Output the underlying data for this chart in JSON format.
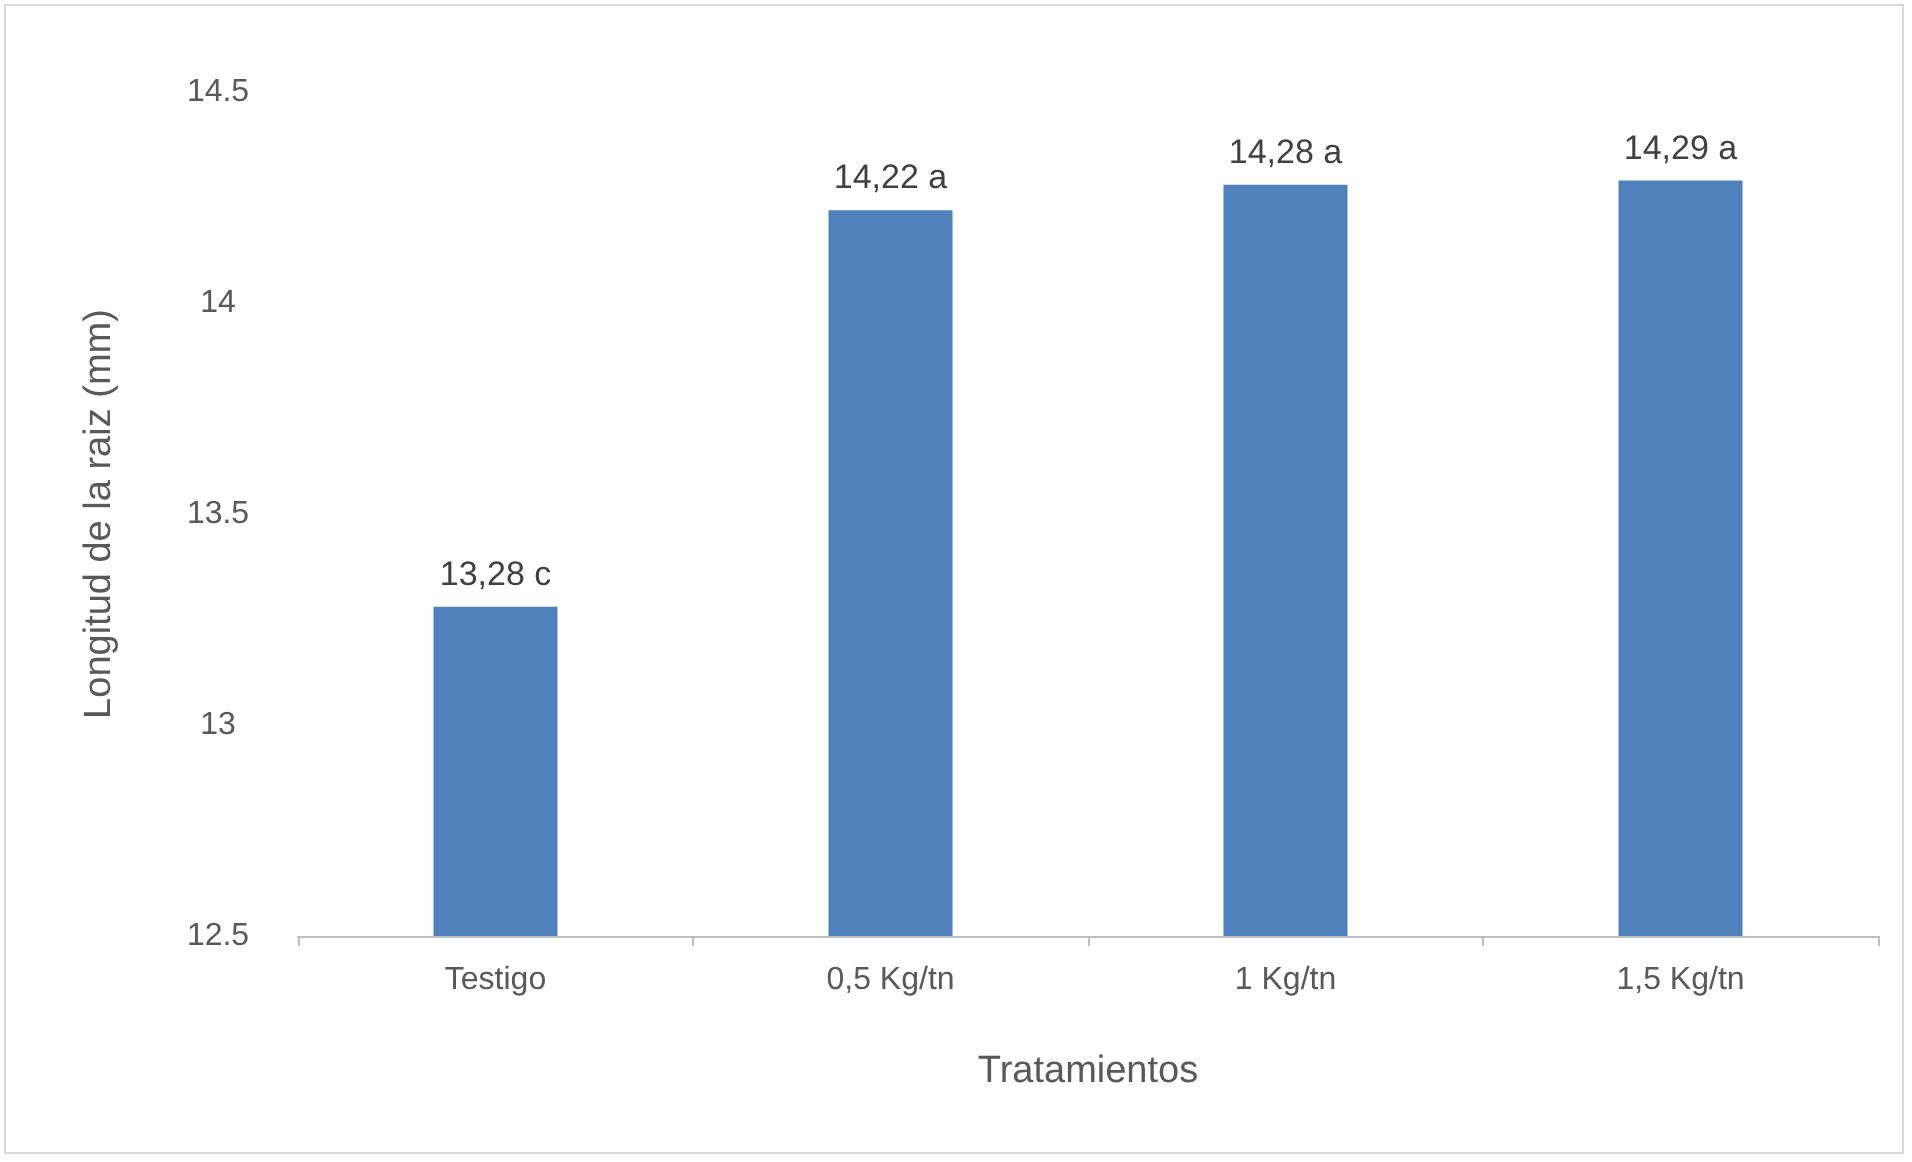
{
  "chart_data": {
    "type": "bar",
    "xlabel": "Tratamientos",
    "ylabel": "Longitud de la raiz (mm)",
    "categories": [
      "Testigo",
      "0,5 Kg/tn",
      "1 Kg/tn",
      "1,5 Kg/tn"
    ],
    "values": [
      13.28,
      14.22,
      14.28,
      14.29
    ],
    "value_labels": [
      "13,28 c",
      "14,22 a",
      "14,28 a",
      "14,29 a"
    ],
    "color": "#4f81bd",
    "ylim": [
      12.5,
      14.5
    ],
    "yticks": [
      12.5,
      13,
      13.5,
      14,
      14.5
    ],
    "grid": false
  }
}
